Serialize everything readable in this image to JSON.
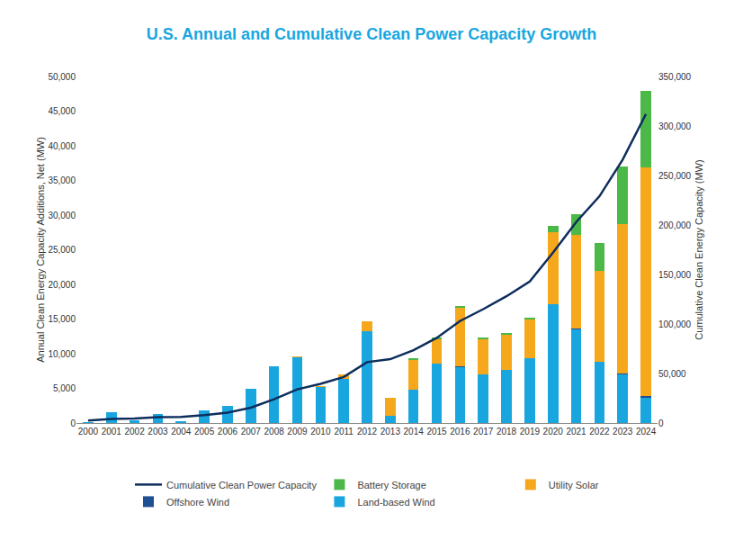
{
  "chart_data": {
    "type": "bar",
    "title": "U.S. Annual and Cumulative Clean Power Capacity Growth",
    "y_label": "Annual Clean Energy Capacity Additions, Net (MW)",
    "y2_label": "Cumulative Clean Energy Capacity (MW)",
    "stacked": true,
    "grid": false,
    "legend": "bottom",
    "categories": [
      "2000",
      "2001",
      "2002",
      "2003",
      "2004",
      "2005",
      "2006",
      "2007",
      "2008",
      "2009",
      "2010",
      "2011",
      "2012",
      "2013",
      "2014",
      "2015",
      "2016",
      "2017",
      "2018",
      "2019",
      "2020",
      "2021",
      "2022",
      "2023",
      "2024"
    ],
    "ylim": [
      0,
      50000
    ],
    "yticks": [
      0,
      {
        "value": 5000,
        "label": "5,000"
      },
      {
        "value": 10000,
        "label": "10,000"
      },
      {
        "value": 15000,
        "label": "15,000"
      },
      {
        "value": 20000,
        "label": "20,000"
      },
      {
        "value": 25000,
        "label": "25,000"
      },
      {
        "value": 30000,
        "label": "30,000"
      },
      {
        "value": 35000,
        "label": "35,000"
      },
      {
        "value": 40000,
        "label": "40,000"
      },
      {
        "value": 45000,
        "label": "45,000"
      },
      {
        "value": 50000,
        "label": "50,000"
      }
    ],
    "y2lim": [
      0,
      350000
    ],
    "y2ticks": [
      0,
      {
        "value": 50000,
        "label": "50,000"
      },
      {
        "value": 100000,
        "label": "100,000"
      },
      {
        "value": 150000,
        "label": "150,000"
      },
      {
        "value": 200000,
        "label": "200,000"
      },
      {
        "value": 250000,
        "label": "250,000"
      },
      {
        "value": 300000,
        "label": "300,000"
      },
      {
        "value": 350000,
        "label": "350,000"
      }
    ],
    "series": [
      {
        "name": "Land-based Wind",
        "color": "#19a6df",
        "type": "bar",
        "values": [
          60,
          1500,
          400,
          1300,
          250,
          1800,
          2500,
          4900,
          8200,
          9500,
          5200,
          6400,
          13300,
          1000,
          4800,
          8600,
          8100,
          7000,
          7600,
          9400,
          17100,
          13600,
          8800,
          7100,
          3700
        ]
      },
      {
        "name": "Offshore Wind",
        "color": "#1d4f91",
        "type": "bar",
        "values": [
          0,
          0,
          0,
          0,
          0,
          0,
          0,
          0,
          0,
          0,
          0,
          0,
          0,
          0,
          0,
          0,
          30,
          0,
          0,
          0,
          0,
          12,
          0,
          100,
          180
        ]
      },
      {
        "name": "Utility Solar",
        "color": "#f5a81c",
        "type": "bar",
        "values": [
          0,
          0,
          0,
          0,
          0,
          0,
          0,
          0,
          0,
          100,
          100,
          600,
          1400,
          2600,
          4400,
          3600,
          8500,
          5100,
          5100,
          5600,
          10400,
          13500,
          13200,
          21500,
          33000
        ]
      },
      {
        "name": "Battery Storage",
        "color": "#4cb848",
        "type": "bar",
        "values": [
          0,
          0,
          0,
          0,
          0,
          0,
          0,
          0,
          0,
          0,
          0,
          0,
          0,
          0,
          100,
          200,
          200,
          200,
          300,
          200,
          900,
          3000,
          4000,
          8300,
          11000
        ]
      },
      {
        "name": "Cumulative Clean Power Capacity",
        "color": "#0d2d5c",
        "type": "line",
        "axis": "y2",
        "values": [
          2500,
          4000,
          4500,
          6000,
          6200,
          8000,
          10500,
          15500,
          24000,
          34000,
          39500,
          46500,
          61500,
          64500,
          73500,
          86000,
          103000,
          115000,
          128000,
          143000,
          172000,
          203000,
          229000,
          266000,
          312000
        ]
      }
    ]
  }
}
